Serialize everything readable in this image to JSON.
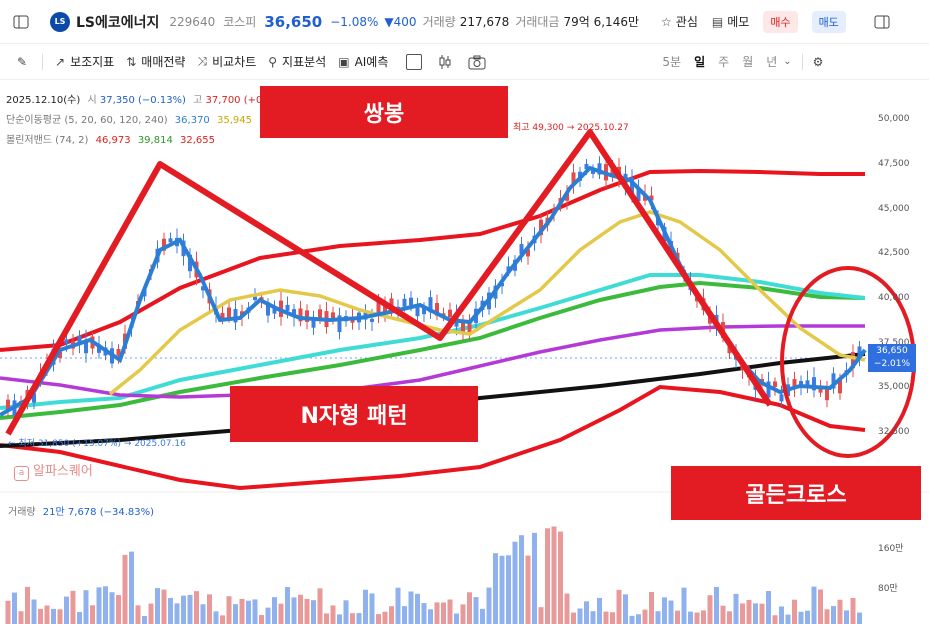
{
  "header": {
    "logo_text": "LS",
    "stock_name": "LS에코에너지",
    "code": "229640",
    "market": "코스피",
    "price": "36,650",
    "change_pct": "−1.08%",
    "change_abs": "▼400",
    "volume_label": "거래량",
    "volume": "217,678",
    "amount_label": "거래대금",
    "amount": "79억 6,146만",
    "watch_label": "관심",
    "memo_label": "메모",
    "buy_label": "매수",
    "sell_label": "매도"
  },
  "toolbar": {
    "items": [
      "보조지표",
      "매매전략",
      "비교차트",
      "지표분석",
      "AI예측"
    ],
    "periods": [
      "5분",
      "일",
      "주",
      "월",
      "년"
    ],
    "active_period": "일"
  },
  "legend": {
    "date_line": "2025.12.10(수)",
    "open_label": "시",
    "open_value": "37,350 (−0.13%)",
    "high_label": "고",
    "high_value": "37,700 (+0.",
    "ma_label": "단순이동평균 (5, 20, 60, 120, 240)",
    "ma_values": [
      "36,370",
      "35,945"
    ],
    "bb_label": "볼린저밴드 (74, 2)",
    "bb_values": [
      "46,973",
      "39,814",
      "32,655"
    ]
  },
  "annotations": {
    "high_marker": "최고 49,300 → 2025.10.27",
    "low_marker": "← 최저 31,850 (+15.07%) → 2025.07.16",
    "watermark": "알파스퀘어",
    "ssangbong": "쌍봉",
    "n_pattern": "N자형 패턴",
    "golden_cross": "골든크로스"
  },
  "price_axis": [
    "50,000",
    "47,500",
    "45,000",
    "42,500",
    "40,000",
    "37,500",
    "35,000",
    "32,500"
  ],
  "price_tag": {
    "price": "36,650",
    "pct": "−2.01%"
  },
  "volume_panel": {
    "label": "거래량",
    "value": "21만 7,678 (−34.83%)",
    "axis": [
      "160만",
      "80만"
    ]
  },
  "colors": {
    "up": "#e24b4b",
    "down": "#3c7be0",
    "ma5": "#2a7fd4",
    "ma20": "#e4c84a",
    "ma60": "#3fdcd6",
    "ma120": "#3cba3c",
    "ma240": "#111111",
    "bb": "#e8141e",
    "purple": "#b43ad8",
    "annot": "#e31b23"
  }
}
